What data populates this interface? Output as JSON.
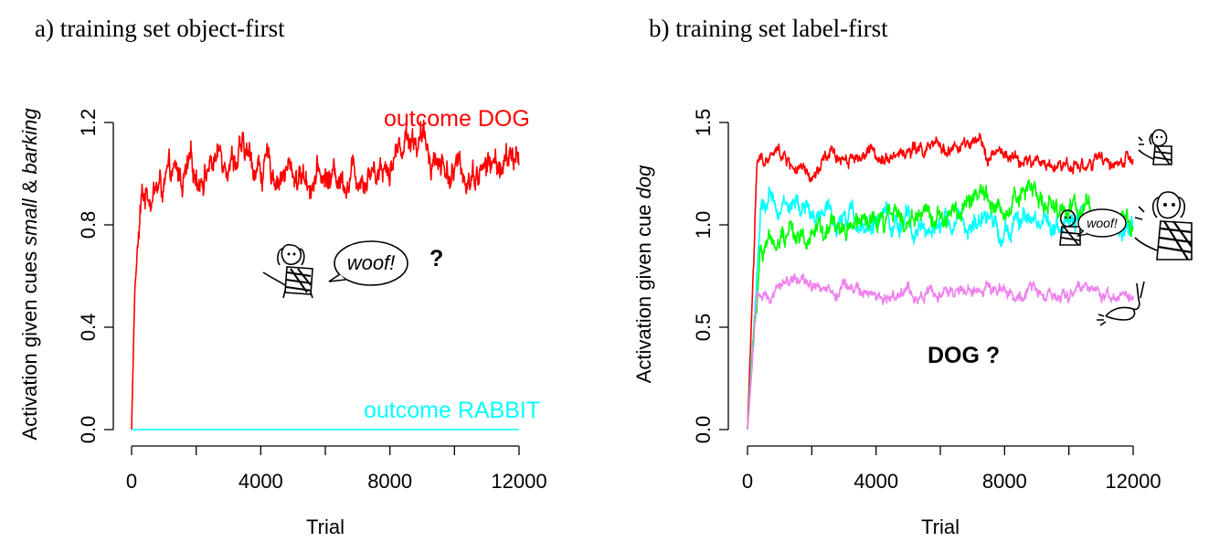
{
  "chart_data": [
    {
      "type": "line",
      "panel_title": "a) training set object-first",
      "xlabel": "Trial",
      "ylabel_parts": [
        "Activation given cues ",
        "small",
        " & ",
        "barking"
      ],
      "xlim": [
        0,
        12000
      ],
      "ylim": [
        0,
        1.2
      ],
      "x_ticks": [
        0,
        4000,
        8000,
        12000
      ],
      "y_ticks": [
        "0.0",
        "0.4",
        "0.8",
        "1.2"
      ],
      "grid": false,
      "series": [
        {
          "name": "outcome DOG",
          "color": "#ff0000",
          "plateau": 1.0,
          "noise": 0.07,
          "x": [
            0,
            100,
            300,
            500,
            1000,
            2000,
            3000,
            4000,
            6000,
            8000,
            8600,
            10000,
            12000
          ],
          "y": [
            0.0,
            0.55,
            0.88,
            0.94,
            0.95,
            1.0,
            1.1,
            1.02,
            0.98,
            1.05,
            1.17,
            1.0,
            1.05
          ]
        },
        {
          "name": "outcome RABBIT",
          "color": "#00ffff",
          "plateau": 0.0,
          "noise": 0.0,
          "x": [
            0,
            12000
          ],
          "y": [
            0.0,
            0.0
          ]
        }
      ],
      "annotations": [
        {
          "text": "outcome DOG",
          "color": "#ff0000"
        },
        {
          "text": "outcome RABBIT",
          "color": "#00ffff"
        },
        {
          "text": "?",
          "color": "#000000"
        }
      ],
      "speech_bubble": "woof!"
    },
    {
      "type": "line",
      "panel_title": "b) training set label-first",
      "xlabel": "Trial",
      "ylabel_parts": [
        "Activation given cue ",
        "dog"
      ],
      "xlim": [
        0,
        12000
      ],
      "ylim": [
        0,
        1.5
      ],
      "x_ticks": [
        0,
        4000,
        8000,
        12000
      ],
      "y_ticks": [
        "0.0",
        "0.5",
        "1.0",
        "1.5"
      ],
      "grid": false,
      "series": [
        {
          "color": "#ff0000",
          "plateau": 1.33,
          "noise": 0.04,
          "x": [
            0,
            300,
            1000,
            2000,
            2500,
            7000,
            8600,
            12000
          ],
          "y": [
            0.0,
            1.3,
            1.35,
            1.2,
            1.33,
            1.38,
            1.3,
            1.3
          ]
        },
        {
          "color": "#00ffff",
          "plateau": 1.0,
          "noise": 0.06,
          "x": [
            0,
            400,
            800,
            4000,
            8000,
            12000
          ],
          "y": [
            0.0,
            1.05,
            1.1,
            1.0,
            1.0,
            1.0
          ]
        },
        {
          "color": "#00ff00",
          "plateau": 0.98,
          "noise": 0.06,
          "x": [
            0,
            400,
            800,
            4000,
            8600,
            12000
          ],
          "y": [
            0.0,
            0.9,
            0.95,
            1.0,
            1.15,
            0.98
          ]
        },
        {
          "color": "#ee82ee",
          "plateau": 0.67,
          "noise": 0.035,
          "x": [
            0,
            300,
            1000,
            4000,
            8000,
            12000
          ],
          "y": [
            0.0,
            0.65,
            0.72,
            0.65,
            0.68,
            0.66
          ]
        }
      ],
      "annotations": [
        {
          "text": "DOG ?",
          "color": "#000000"
        }
      ],
      "speech_bubble": "woof!"
    }
  ]
}
